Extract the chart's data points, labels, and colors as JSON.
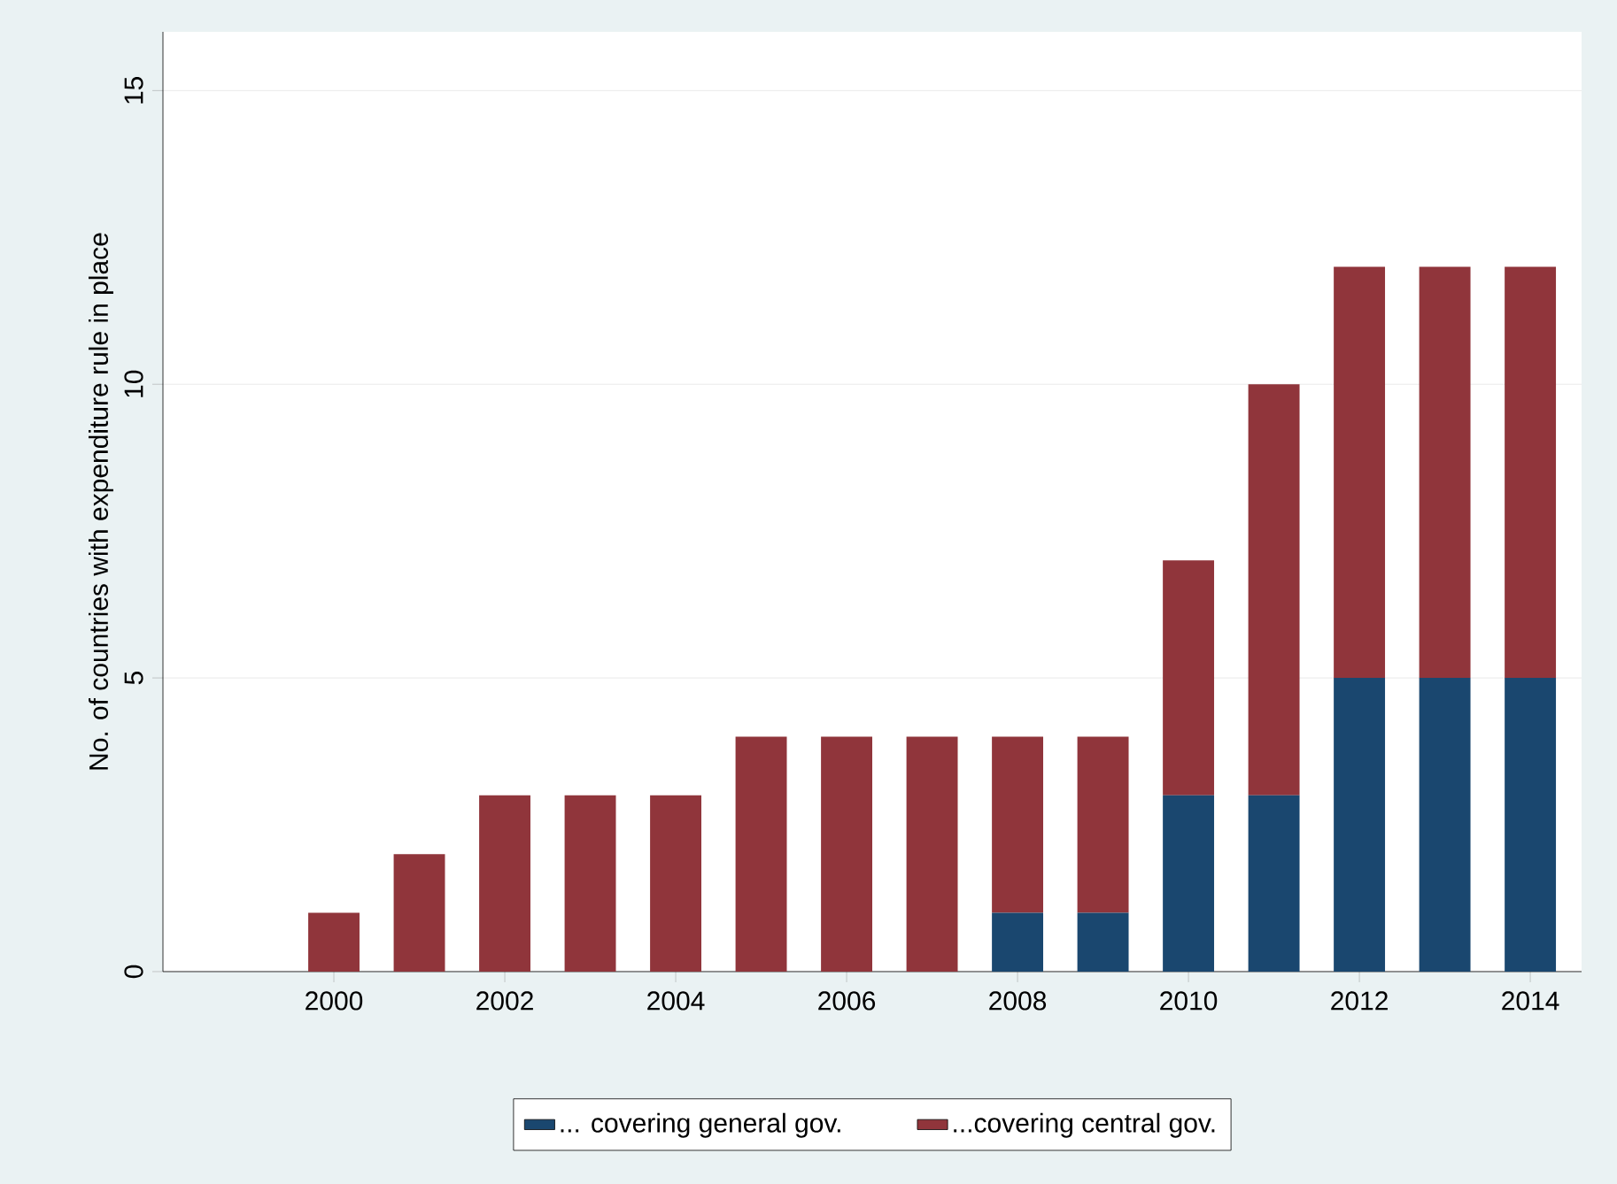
{
  "chart_data": {
    "type": "bar",
    "stacked": true,
    "x": [
      2000,
      2001,
      2002,
      2003,
      2004,
      2005,
      2006,
      2007,
      2008,
      2009,
      2010,
      2011,
      2012,
      2013,
      2014
    ],
    "series": [
      {
        "name": "... covering general gov.",
        "color": "#1a476f",
        "values": [
          0,
          0,
          0,
          0,
          0,
          0,
          0,
          0,
          1,
          1,
          3,
          3,
          5,
          5,
          5
        ]
      },
      {
        "name": "...covering central gov.",
        "color": "#90353b",
        "values": [
          1,
          2,
          3,
          3,
          3,
          4,
          4,
          4,
          3,
          3,
          4,
          7,
          7,
          7,
          7
        ]
      }
    ],
    "ylabel": "No. of countries with expenditure rule in place",
    "xlim": [
      1998,
      2014.6
    ],
    "ylim": [
      0,
      16
    ],
    "xticks": [
      2000,
      2002,
      2004,
      2006,
      2008,
      2010,
      2012,
      2014
    ],
    "yticks": [
      0,
      5,
      10,
      15
    ],
    "grid": "y",
    "legend": "bottom"
  }
}
